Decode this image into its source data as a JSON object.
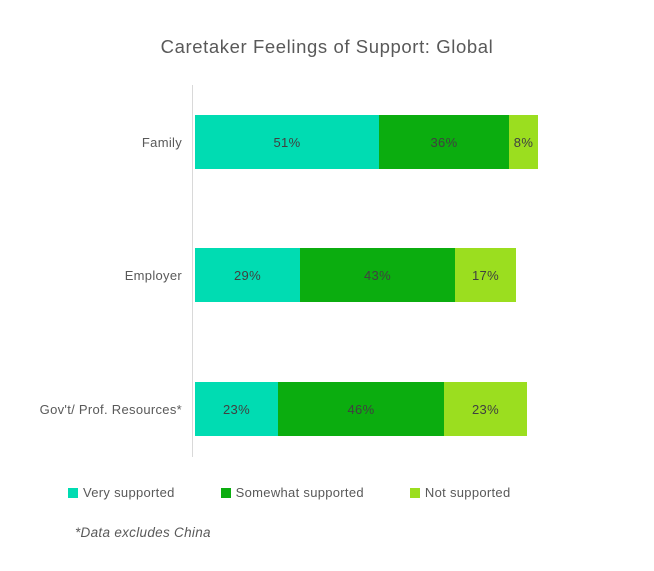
{
  "title": "Caretaker Feelings of Support: Global",
  "footnote": "*Data excludes China",
  "colors": {
    "very_supported": "#00dcb2",
    "somewhat_supported": "#0bad0f",
    "not_supported": "#9bde1f",
    "axis_line": "#d9d9d9",
    "text": "#595959",
    "bar_label_text": "#404040",
    "background": "#ffffff"
  },
  "chart_data": {
    "type": "bar",
    "orientation": "horizontal",
    "stacked": true,
    "title": "Caretaker Feelings of Support: Global",
    "categories": [
      "Family",
      "Employer",
      "Gov't/ Prof. Resources*"
    ],
    "series": [
      {
        "name": "Very supported",
        "color": "#00dcb2",
        "values": [
          51,
          29,
          23
        ]
      },
      {
        "name": "Somewhat supported",
        "color": "#0bad0f",
        "values": [
          36,
          43,
          46
        ]
      },
      {
        "name": "Not supported",
        "color": "#9bde1f",
        "values": [
          8,
          17,
          23
        ]
      }
    ],
    "value_suffix": "%",
    "xlabel": "",
    "ylabel": "",
    "xlim": [
      0,
      100
    ],
    "grid": false,
    "legend_position": "bottom",
    "data_labels": "inside-center",
    "annotations": [
      "*Data excludes China"
    ]
  }
}
